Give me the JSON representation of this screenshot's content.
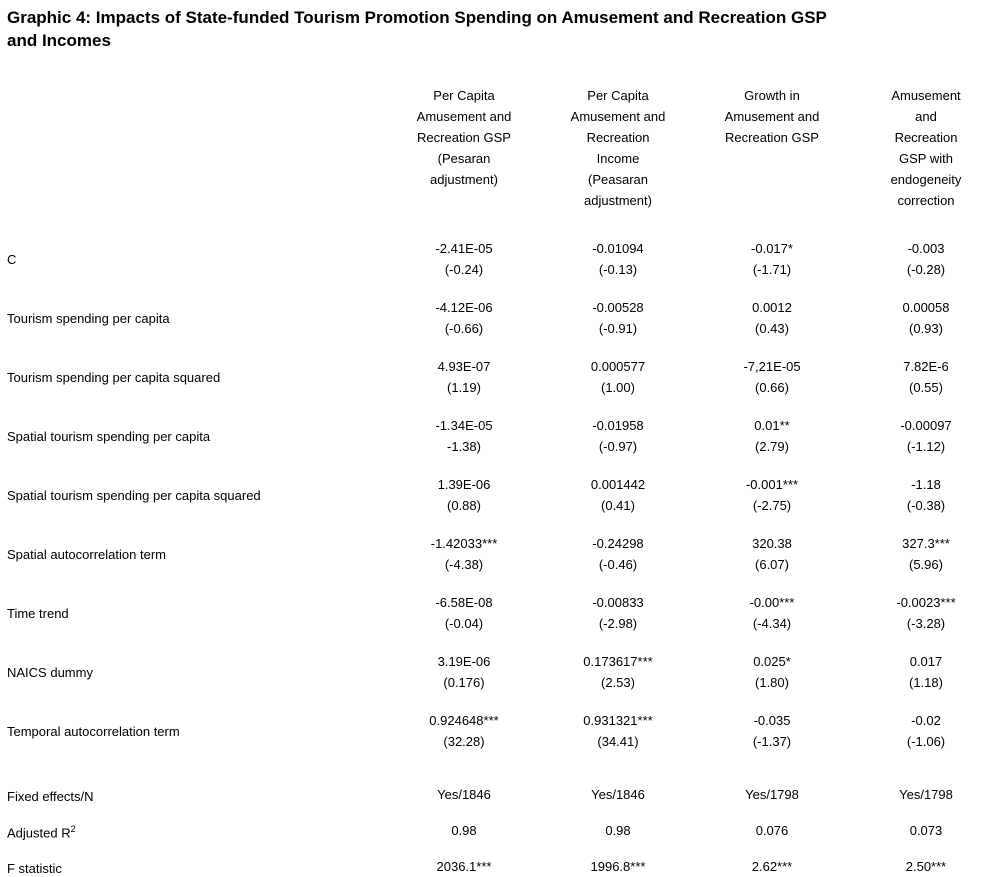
{
  "title": "Graphic 4: Impacts of State-funded Tourism Promotion Spending on Amusement and Recreation GSP\nand Incomes",
  "table": {
    "columns": [
      "Per Capita\nAmusement and\nRecreation GSP\n(Pesaran\nadjustment)",
      "Per Capita\nAmusement and\nRecreation\nIncome\n(Peasaran\nadjustment)",
      "Growth in\nAmusement and\nRecreation GSP",
      "Amusement\nand\nRecreation\nGSP with\nendogeneity\ncorrection"
    ],
    "rows": [
      {
        "label": "C",
        "cells": [
          {
            "coef": "-2.41E-05",
            "t": "(-0.24)"
          },
          {
            "coef": "-0.01094",
            "t": "(-0.13)"
          },
          {
            "coef": "-0.017*",
            "t": "(-1.71)"
          },
          {
            "coef": "-0.003",
            "t": "(-0.28)"
          }
        ]
      },
      {
        "label": "Tourism spending per capita",
        "cells": [
          {
            "coef": "-4.12E-06",
            "t": "(-0.66)"
          },
          {
            "coef": "-0.00528",
            "t": "(-0.91)"
          },
          {
            "coef": "0.0012",
            "t": "(0.43)"
          },
          {
            "coef": "0.00058",
            "t": "(0.93)"
          }
        ]
      },
      {
        "label": "Tourism spending per capita squared",
        "cells": [
          {
            "coef": "4.93E-07",
            "t": "(1.19)"
          },
          {
            "coef": "0.000577",
            "t": "(1.00)"
          },
          {
            "coef": "-7,21E-05",
            "t": "(0.66)"
          },
          {
            "coef": "7.82E-6",
            "t": "(0.55)"
          }
        ]
      },
      {
        "label": "Spatial tourism spending per capita",
        "cells": [
          {
            "coef": "-1.34E-05",
            "t": "-1.38)"
          },
          {
            "coef": "-0.01958",
            "t": "(-0.97)"
          },
          {
            "coef": "0.01**",
            "t": "(2.79)"
          },
          {
            "coef": "-0.00097",
            "t": "(-1.12)"
          }
        ]
      },
      {
        "label": "Spatial tourism spending per capita squared",
        "cells": [
          {
            "coef": "1.39E-06",
            "t": "(0.88)"
          },
          {
            "coef": "0.001442",
            "t": "(0.41)"
          },
          {
            "coef": "-0.001***",
            "t": "(-2.75)"
          },
          {
            "coef": "-1.18",
            "t": "(-0.38)"
          }
        ]
      },
      {
        "label": "Spatial autocorrelation term",
        "cells": [
          {
            "coef": "-1.42033***",
            "t": "(-4.38)"
          },
          {
            "coef": "-0.24298",
            "t": "(-0.46)"
          },
          {
            "coef": "320.38",
            "t": "(6.07)"
          },
          {
            "coef": "327.3***",
            "t": "(5.96)"
          }
        ]
      },
      {
        "label": "Time trend",
        "cells": [
          {
            "coef": "-6.58E-08",
            "t": "(-0.04)"
          },
          {
            "coef": "-0.00833",
            "t": "(-2.98)"
          },
          {
            "coef": "-0.00***",
            "t": "(-4.34)"
          },
          {
            "coef": "-0.0023***",
            "t": "(-3.28)"
          }
        ]
      },
      {
        "label": "NAICS dummy",
        "cells": [
          {
            "coef": "3.19E-06",
            "t": "(0.176)"
          },
          {
            "coef": "0.173617***",
            "t": "(2.53)"
          },
          {
            "coef": "0.025*",
            "t": "(1.80)"
          },
          {
            "coef": "0.017",
            "t": "(1.18)"
          }
        ]
      },
      {
        "label": "Temporal autocorrelation term",
        "cells": [
          {
            "coef": "0.924648***",
            "t": "(32.28)"
          },
          {
            "coef": "0.931321***",
            "t": "(34.41)"
          },
          {
            "coef": "-0.035",
            "t": "(-1.37)"
          },
          {
            "coef": "-0.02",
            "t": "(-1.06)"
          }
        ]
      }
    ],
    "summary_rows": [
      {
        "label": "Fixed effects/N",
        "values": [
          "Yes/1846",
          "Yes/1846",
          "Yes/1798",
          "Yes/1798"
        ]
      },
      {
        "label": "Adjusted R",
        "label_sup": "2",
        "values": [
          "0.98",
          "0.98",
          "0.076",
          "0.073"
        ]
      },
      {
        "label": "F statistic",
        "values": [
          "2036.1***",
          "1996.8***",
          "2.62***",
          "2.50***"
        ]
      }
    ]
  }
}
